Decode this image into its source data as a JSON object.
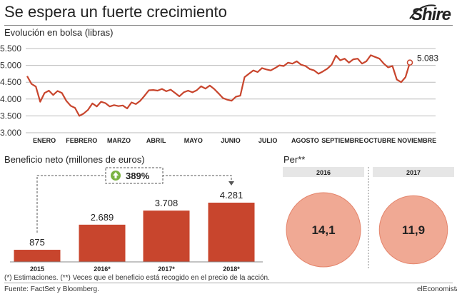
{
  "header": {
    "title": "Se espera un fuerte crecimiento",
    "logo": "Shire"
  },
  "footer": {
    "note": "(*) Estimaciones. (**) Veces que el beneficio está recogido en el precio de la acción.",
    "source": "Fuente: FactSet y Bloomberg.",
    "brand": "elEconomista"
  },
  "colors": {
    "accent": "#c8452d",
    "band": "#e6e6e6",
    "circle": "#f0a994",
    "circle_stroke": "#e4846b",
    "badge_green": "#7bb342"
  },
  "chart_data": [
    {
      "type": "line",
      "title": "Evolución en bolsa (libras)",
      "y_ticks": [
        "5.500",
        "5.000",
        "4.500",
        "4.000",
        "3.500",
        "3.000"
      ],
      "ylim": [
        3000,
        5500
      ],
      "x_labels": [
        "ENERO",
        "FEBRERO",
        "MARZO",
        "ABRIL",
        "MAYO",
        "JUNIO",
        "JULIO",
        "AGOSTO",
        "SEPTIEMBRE",
        "OCTUBRE",
        "NOVIEMBRE"
      ],
      "last_value_label": "5.083",
      "last_value": 5083,
      "series": [
        {
          "values": [
            4680,
            4450,
            4370,
            3920,
            4180,
            4250,
            4120,
            4240,
            4180,
            3950,
            3800,
            3740,
            3500,
            3570,
            3680,
            3870,
            3780,
            3920,
            3880,
            3780,
            3820,
            3790,
            3810,
            3720,
            3900,
            3850,
            3950,
            4100,
            4260,
            4270,
            4250,
            4300,
            4230,
            4280,
            4180,
            4080,
            4200,
            4250,
            4200,
            4260,
            4380,
            4310,
            4400,
            4300,
            4170,
            4030,
            3980,
            3950,
            4070,
            4100,
            4650,
            4750,
            4850,
            4800,
            4920,
            4880,
            4850,
            4920,
            5000,
            4980,
            5080,
            5050,
            5120,
            5020,
            4980,
            4890,
            4850,
            4750,
            4820,
            4900,
            5020,
            5290,
            5150,
            5200,
            5080,
            5180,
            5200,
            5050,
            5120,
            5300,
            5250,
            5200,
            5050,
            4940,
            4980,
            4580,
            4500,
            4650,
            5083
          ]
        }
      ]
    },
    {
      "type": "bar",
      "title": "Beneficio neto (millones de euros)",
      "categories": [
        "2015",
        "2016*",
        "2017*",
        "2018*"
      ],
      "values": [
        875,
        2689,
        3708,
        4281
      ],
      "value_labels": [
        "875",
        "2.689",
        "3.708",
        "4.281"
      ],
      "ylim": [
        0,
        4281
      ],
      "annotation": "389%"
    },
    {
      "type": "table",
      "title": "Per**",
      "columns": [
        "2016",
        "2017"
      ],
      "values": [
        14.1,
        11.9
      ],
      "value_labels": [
        "14,1",
        "11,9"
      ]
    }
  ]
}
